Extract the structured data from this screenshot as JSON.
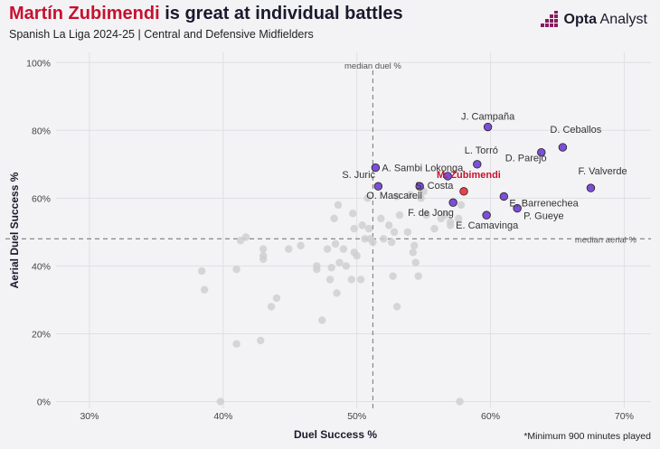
{
  "title": {
    "name": "Martín Zubimendi",
    "rest": " is great at individual battles"
  },
  "subtitle": "Spanish La Liga 2024-25 | Central and Defensive Midfielders",
  "brand": {
    "name_bold": "Opta",
    "name_rest": " Analyst",
    "color": "#8a1b5f"
  },
  "footnote": "*Minimum 900 minutes played",
  "chart_data": {
    "type": "scatter",
    "xlabel": "Duel Success %",
    "ylabel": "Aerial Duel Success %",
    "xlim": [
      0.275,
      0.72
    ],
    "ylim": [
      -0.02,
      1.03
    ],
    "x_ticks": [
      0.3,
      0.4,
      0.5,
      0.6,
      0.7
    ],
    "x_tick_labels": [
      "30%",
      "40%",
      "50%",
      "60%",
      "70%"
    ],
    "y_ticks": [
      0,
      0.2,
      0.4,
      0.6,
      0.8,
      1.0
    ],
    "y_tick_labels": [
      "0%",
      "20%",
      "40%",
      "60%",
      "80%",
      "100%"
    ],
    "grid": true,
    "medians": {
      "x": 0.512,
      "y": 0.48,
      "x_label": "median duel %",
      "y_label": "median aerial %"
    },
    "colors": {
      "others": "#cfcfcf",
      "highlighted": "#7b4fd6",
      "focus": "#e8424a",
      "focus_label": "#c8102e"
    },
    "labelled": [
      {
        "name": "J. Campaña",
        "x": 0.598,
        "y": 0.81
      },
      {
        "name": "D. Ceballos",
        "x": 0.654,
        "y": 0.75
      },
      {
        "name": "D. Parejo",
        "x": 0.638,
        "y": 0.735
      },
      {
        "name": "L. Torró",
        "x": 0.59,
        "y": 0.7
      },
      {
        "name": "A. Sambi Lokonga",
        "x": 0.514,
        "y": 0.69
      },
      {
        "name": "S. Juric",
        "x": 0.516,
        "y": 0.635
      },
      {
        "name": "F. Valverde",
        "x": 0.675,
        "y": 0.63
      },
      {
        "name": "M. Zubimendi",
        "x": 0.58,
        "y": 0.62,
        "focus": true
      },
      {
        "name": "O. Mascarell",
        "x": 0.547,
        "y": 0.635
      },
      {
        "name": "S. Costa",
        "x": 0.568,
        "y": 0.665
      },
      {
        "name": "E. Barrenechea",
        "x": 0.61,
        "y": 0.605
      },
      {
        "name": "F. de Jong",
        "x": 0.572,
        "y": 0.587
      },
      {
        "name": "P. Gueye",
        "x": 0.62,
        "y": 0.57
      },
      {
        "name": "E. Camavinga",
        "x": 0.597,
        "y": 0.55
      }
    ],
    "others": [
      [
        0.384,
        0.385
      ],
      [
        0.386,
        0.33
      ],
      [
        0.41,
        0.39
      ],
      [
        0.41,
        0.17
      ],
      [
        0.398,
        0.0
      ],
      [
        0.413,
        0.475
      ],
      [
        0.417,
        0.485
      ],
      [
        0.428,
        0.18
      ],
      [
        0.43,
        0.45
      ],
      [
        0.43,
        0.43
      ],
      [
        0.43,
        0.42
      ],
      [
        0.436,
        0.28
      ],
      [
        0.44,
        0.305
      ],
      [
        0.449,
        0.45
      ],
      [
        0.458,
        0.46
      ],
      [
        0.47,
        0.39
      ],
      [
        0.47,
        0.4
      ],
      [
        0.474,
        0.24
      ],
      [
        0.478,
        0.45
      ],
      [
        0.48,
        0.36
      ],
      [
        0.481,
        0.395
      ],
      [
        0.483,
        0.54
      ],
      [
        0.484,
        0.465
      ],
      [
        0.485,
        0.32
      ],
      [
        0.486,
        0.58
      ],
      [
        0.487,
        0.41
      ],
      [
        0.49,
        0.45
      ],
      [
        0.492,
        0.4
      ],
      [
        0.496,
        0.36
      ],
      [
        0.497,
        0.555
      ],
      [
        0.498,
        0.51
      ],
      [
        0.498,
        0.44
      ],
      [
        0.5,
        0.43
      ],
      [
        0.503,
        0.36
      ],
      [
        0.504,
        0.52
      ],
      [
        0.506,
        0.48
      ],
      [
        0.508,
        0.6
      ],
      [
        0.509,
        0.51
      ],
      [
        0.51,
        0.48
      ],
      [
        0.512,
        0.47
      ],
      [
        0.518,
        0.54
      ],
      [
        0.52,
        0.48
      ],
      [
        0.524,
        0.52
      ],
      [
        0.526,
        0.47
      ],
      [
        0.527,
        0.37
      ],
      [
        0.528,
        0.5
      ],
      [
        0.53,
        0.28
      ],
      [
        0.53,
        0.605
      ],
      [
        0.532,
        0.55
      ],
      [
        0.538,
        0.5
      ],
      [
        0.54,
        0.61
      ],
      [
        0.542,
        0.44
      ],
      [
        0.543,
        0.46
      ],
      [
        0.544,
        0.41
      ],
      [
        0.546,
        0.37
      ],
      [
        0.548,
        0.6
      ],
      [
        0.55,
        0.62
      ],
      [
        0.552,
        0.55
      ],
      [
        0.558,
        0.51
      ],
      [
        0.563,
        0.54
      ],
      [
        0.566,
        0.55
      ],
      [
        0.57,
        0.53
      ],
      [
        0.576,
        0.54
      ],
      [
        0.578,
        0.58
      ],
      [
        0.57,
        0.52
      ],
      [
        0.577,
        0.0
      ]
    ]
  }
}
